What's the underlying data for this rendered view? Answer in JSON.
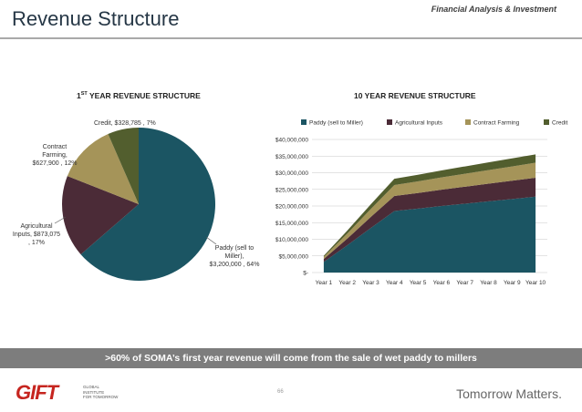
{
  "header": {
    "section_label": "Financial Analysis & Investment",
    "title": "Revenue Structure"
  },
  "pie_chart": {
    "title": "YEAR REVENUE STRUCTURE",
    "title_prefix": "1",
    "title_sup": "ST",
    "labels": {
      "paddy": [
        "Paddy (sell to",
        "Miller),",
        "$3,200,000 , 64%"
      ],
      "agri": [
        "Agricultural",
        "Inputs,  $873,075",
        ", 17%"
      ],
      "contract": [
        "Contract",
        "Farming,",
        "$627,900 , 12%"
      ],
      "credit": [
        "Credit,  $328,785 , 7%"
      ]
    }
  },
  "area_chart": {
    "title": "10 YEAR REVENUE STRUCTURE",
    "yticks": [
      "$-",
      "$5,000,000",
      "$10,000,000",
      "$15,000,000",
      "$20,000,000",
      "$25,000,000",
      "$30,000,000",
      "$35,000,000",
      "$40,000,000"
    ]
  },
  "chart_data": [
    {
      "type": "pie",
      "title": "1ST YEAR REVENUE STRUCTURE",
      "categories": [
        "Paddy (sell to Miller)",
        "Agricultural Inputs",
        "Contract Farming",
        "Credit"
      ],
      "values": [
        3200000,
        873075,
        627900,
        328785
      ],
      "percent": [
        64,
        17,
        12,
        7
      ],
      "colors": [
        "#1b5563",
        "#4b2b37",
        "#a59459",
        "#525e2e"
      ]
    },
    {
      "type": "area",
      "stacked": true,
      "title": "10 YEAR REVENUE STRUCTURE",
      "categories": [
        "Year 1",
        "Year 2",
        "Year 3",
        "Year 4",
        "Year 5",
        "Year 6",
        "Year 7",
        "Year 8",
        "Year 9",
        "Year 10"
      ],
      "ylim": [
        0,
        40000000
      ],
      "ytick_step": 5000000,
      "grid": true,
      "legend": "top",
      "series": [
        {
          "name": "Paddy (sell to Miller)",
          "color": "#1b5563",
          "values": [
            3200000,
            8200000,
            13400000,
            18500000,
            19200000,
            20000000,
            20700000,
            21400000,
            22100000,
            22800000
          ]
        },
        {
          "name": "Agricultural Inputs",
          "color": "#4b2b37",
          "values": [
            873075,
            2000000,
            3300000,
            4500000,
            4700000,
            4900000,
            5100000,
            5300000,
            5500000,
            5700000
          ]
        },
        {
          "name": "Contract Farming",
          "color": "#a59459",
          "values": [
            627900,
            1500000,
            2400000,
            3300000,
            3500000,
            3700000,
            3900000,
            4100000,
            4300000,
            4500000
          ]
        },
        {
          "name": "Credit",
          "color": "#525e2e",
          "values": [
            328785,
            900000,
            1400000,
            1900000,
            2000000,
            2100000,
            2200000,
            2300000,
            2400000,
            2500000
          ]
        }
      ]
    }
  ],
  "banner": {
    "text": ">60% of SOMA’s first year revenue will come from the sale of wet paddy to millers"
  },
  "footer": {
    "logo_text": "GIFT",
    "logo_subtext": [
      "GLOBAL",
      "INSTITUTE",
      "FOR TOMORROW"
    ],
    "page_number": "66",
    "tagline": "Tomorrow Matters."
  }
}
